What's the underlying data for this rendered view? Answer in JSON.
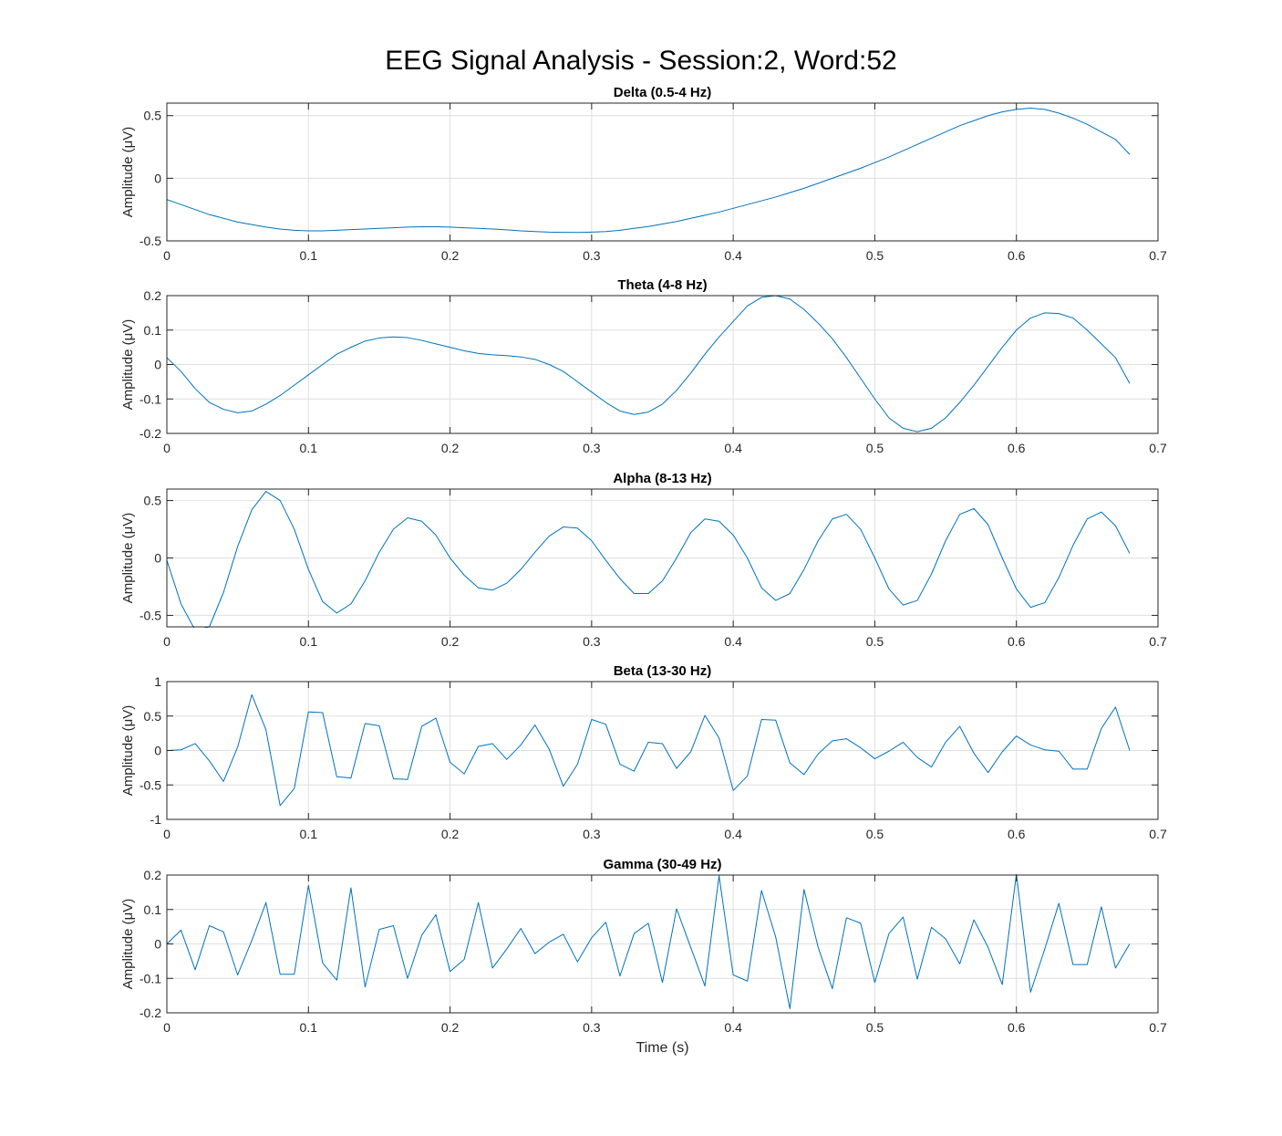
{
  "figure_title": "EEG Signal Analysis - Session:2, Word:52",
  "colors": {
    "line": "#0072BD",
    "grid": "#DFDFDF",
    "axis": "#262626"
  },
  "chart_data": [
    {
      "type": "line",
      "title": "Delta (0.5-4 Hz)",
      "xlabel": "",
      "ylabel": "Amplitude (μV)",
      "xlim": [
        0,
        0.7
      ],
      "ylim": [
        -0.5,
        0.6
      ],
      "xticks": [
        0,
        0.1,
        0.2,
        0.3,
        0.4,
        0.5,
        0.6,
        0.7
      ],
      "xtick_labels": [
        "0",
        "0.1",
        "0.2",
        "0.3",
        "0.4",
        "0.5",
        "0.6",
        "0.7"
      ],
      "yticks": [
        -0.5,
        0,
        0.5
      ],
      "ytick_labels": [
        "-0.5",
        "0",
        "0.5"
      ],
      "grid": true,
      "x": [
        0,
        0.01,
        0.02,
        0.03,
        0.04,
        0.05,
        0.06,
        0.07,
        0.08,
        0.09,
        0.1,
        0.11,
        0.12,
        0.13,
        0.14,
        0.15,
        0.16,
        0.17,
        0.18,
        0.19,
        0.2,
        0.21,
        0.22,
        0.23,
        0.24,
        0.25,
        0.26,
        0.27,
        0.28,
        0.29,
        0.3,
        0.31,
        0.32,
        0.33,
        0.34,
        0.35,
        0.36,
        0.37,
        0.38,
        0.39,
        0.4,
        0.41,
        0.42,
        0.43,
        0.44,
        0.45,
        0.46,
        0.47,
        0.48,
        0.49,
        0.5,
        0.51,
        0.52,
        0.53,
        0.54,
        0.55,
        0.56,
        0.57,
        0.58,
        0.59,
        0.6,
        0.61,
        0.62,
        0.63,
        0.64,
        0.65,
        0.66,
        0.67,
        0.68
      ],
      "series": [
        {
          "values": [
            -0.17,
            -0.21,
            -0.25,
            -0.29,
            -0.32,
            -0.35,
            -0.37,
            -0.39,
            -0.405,
            -0.415,
            -0.42,
            -0.42,
            -0.415,
            -0.41,
            -0.405,
            -0.4,
            -0.395,
            -0.39,
            -0.387,
            -0.387,
            -0.39,
            -0.395,
            -0.4,
            -0.405,
            -0.412,
            -0.42,
            -0.425,
            -0.43,
            -0.432,
            -0.433,
            -0.43,
            -0.425,
            -0.415,
            -0.4,
            -0.385,
            -0.365,
            -0.345,
            -0.32,
            -0.295,
            -0.27,
            -0.24,
            -0.21,
            -0.18,
            -0.15,
            -0.115,
            -0.08,
            -0.04,
            0,
            0.04,
            0.08,
            0.125,
            0.17,
            0.22,
            0.27,
            0.32,
            0.37,
            0.42,
            0.46,
            0.5,
            0.53,
            0.55,
            0.56,
            0.55,
            0.52,
            0.48,
            0.43,
            0.37,
            0.31,
            0.19
          ]
        }
      ]
    },
    {
      "type": "line",
      "title": "Theta (4-8 Hz)",
      "xlabel": "",
      "ylabel": "Amplitude (μV)",
      "xlim": [
        0,
        0.7
      ],
      "ylim": [
        -0.2,
        0.2
      ],
      "xticks": [
        0,
        0.1,
        0.2,
        0.3,
        0.4,
        0.5,
        0.6,
        0.7
      ],
      "xtick_labels": [
        "0",
        "0.1",
        "0.2",
        "0.3",
        "0.4",
        "0.5",
        "0.6",
        "0.7"
      ],
      "yticks": [
        -0.2,
        -0.1,
        0,
        0.1,
        0.2
      ],
      "ytick_labels": [
        "-0.2",
        "-0.1",
        "0",
        "0.1",
        "0.2"
      ],
      "grid": true,
      "x": [
        0,
        0.01,
        0.02,
        0.03,
        0.04,
        0.05,
        0.06,
        0.07,
        0.08,
        0.09,
        0.1,
        0.11,
        0.12,
        0.13,
        0.14,
        0.15,
        0.16,
        0.17,
        0.18,
        0.19,
        0.2,
        0.21,
        0.22,
        0.23,
        0.24,
        0.25,
        0.26,
        0.27,
        0.28,
        0.29,
        0.3,
        0.31,
        0.32,
        0.33,
        0.34,
        0.35,
        0.36,
        0.37,
        0.38,
        0.39,
        0.4,
        0.41,
        0.42,
        0.43,
        0.44,
        0.45,
        0.46,
        0.47,
        0.48,
        0.49,
        0.5,
        0.51,
        0.52,
        0.53,
        0.54,
        0.55,
        0.56,
        0.57,
        0.58,
        0.59,
        0.6,
        0.61,
        0.62,
        0.63,
        0.64,
        0.65,
        0.66,
        0.67,
        0.68
      ],
      "series": [
        {
          "values": [
            0.02,
            -0.02,
            -0.07,
            -0.11,
            -0.13,
            -0.14,
            -0.135,
            -0.115,
            -0.09,
            -0.06,
            -0.03,
            0,
            0.03,
            0.05,
            0.068,
            0.077,
            0.08,
            0.078,
            0.07,
            0.06,
            0.05,
            0.04,
            0.032,
            0.028,
            0.026,
            0.022,
            0.015,
            0,
            -0.02,
            -0.05,
            -0.08,
            -0.11,
            -0.135,
            -0.145,
            -0.138,
            -0.115,
            -0.075,
            -0.025,
            0.03,
            0.08,
            0.125,
            0.17,
            0.195,
            0.2,
            0.19,
            0.16,
            0.12,
            0.075,
            0.02,
            -0.04,
            -0.1,
            -0.155,
            -0.185,
            -0.195,
            -0.185,
            -0.155,
            -0.11,
            -0.06,
            -0.005,
            0.05,
            0.1,
            0.135,
            0.15,
            0.148,
            0.135,
            0.1,
            0.06,
            0.02,
            -0.055
          ]
        }
      ]
    },
    {
      "type": "line",
      "title": "Alpha (8-13 Hz)",
      "xlabel": "",
      "ylabel": "Amplitude (μV)",
      "xlim": [
        0,
        0.7
      ],
      "ylim": [
        -0.6,
        0.6
      ],
      "xticks": [
        0,
        0.1,
        0.2,
        0.3,
        0.4,
        0.5,
        0.6,
        0.7
      ],
      "xtick_labels": [
        "0",
        "0.1",
        "0.2",
        "0.3",
        "0.4",
        "0.5",
        "0.6",
        "0.7"
      ],
      "yticks": [
        -0.5,
        0,
        0.5
      ],
      "ytick_labels": [
        "-0.5",
        "0",
        "0.5"
      ],
      "grid": true,
      "x": [
        0,
        0.01,
        0.02,
        0.03,
        0.04,
        0.05,
        0.06,
        0.07,
        0.08,
        0.09,
        0.1,
        0.11,
        0.12,
        0.13,
        0.14,
        0.15,
        0.16,
        0.17,
        0.18,
        0.19,
        0.2,
        0.21,
        0.22,
        0.23,
        0.24,
        0.25,
        0.26,
        0.27,
        0.28,
        0.29,
        0.3,
        0.31,
        0.32,
        0.33,
        0.34,
        0.35,
        0.36,
        0.37,
        0.38,
        0.39,
        0.4,
        0.41,
        0.42,
        0.43,
        0.44,
        0.45,
        0.46,
        0.47,
        0.48,
        0.49,
        0.5,
        0.51,
        0.52,
        0.53,
        0.54,
        0.55,
        0.56,
        0.57,
        0.58,
        0.59,
        0.6,
        0.61,
        0.62,
        0.63,
        0.64,
        0.65,
        0.66,
        0.67,
        0.68
      ],
      "series": [
        {
          "values": [
            -0.02,
            -0.4,
            -0.63,
            -0.6,
            -0.3,
            0.1,
            0.42,
            0.58,
            0.5,
            0.25,
            -0.1,
            -0.38,
            -0.48,
            -0.4,
            -0.2,
            0.05,
            0.25,
            0.35,
            0.32,
            0.2,
            0,
            -0.15,
            -0.26,
            -0.28,
            -0.22,
            -0.1,
            0.05,
            0.19,
            0.27,
            0.26,
            0.15,
            -0.02,
            -0.18,
            -0.31,
            -0.31,
            -0.2,
            0,
            0.22,
            0.34,
            0.32,
            0.2,
            0,
            -0.26,
            -0.37,
            -0.31,
            -0.1,
            0.15,
            0.34,
            0.38,
            0.25,
            0,
            -0.27,
            -0.41,
            -0.37,
            -0.14,
            0.15,
            0.38,
            0.43,
            0.29,
            0,
            -0.27,
            -0.43,
            -0.39,
            -0.17,
            0.11,
            0.34,
            0.4,
            0.28,
            0.04
          ]
        }
      ]
    },
    {
      "type": "line",
      "title": "Beta (13-30 Hz)",
      "xlabel": "",
      "ylabel": "Amplitude (μV)",
      "xlim": [
        0,
        0.7
      ],
      "ylim": [
        -1,
        1
      ],
      "xticks": [
        0,
        0.1,
        0.2,
        0.3,
        0.4,
        0.5,
        0.6,
        0.7
      ],
      "xtick_labels": [
        "0",
        "0.1",
        "0.2",
        "0.3",
        "0.4",
        "0.5",
        "0.6",
        "0.7"
      ],
      "yticks": [
        -1,
        -0.5,
        0,
        0.5,
        1
      ],
      "ytick_labels": [
        "-1",
        "-0.5",
        "0",
        "0.5",
        "1"
      ],
      "grid": true,
      "x": [
        0,
        0.01,
        0.02,
        0.03,
        0.04,
        0.05,
        0.06,
        0.07,
        0.08,
        0.09,
        0.1,
        0.11,
        0.12,
        0.13,
        0.14,
        0.15,
        0.16,
        0.17,
        0.18,
        0.19,
        0.2,
        0.21,
        0.22,
        0.23,
        0.24,
        0.25,
        0.26,
        0.27,
        0.28,
        0.29,
        0.3,
        0.31,
        0.32,
        0.33,
        0.34,
        0.35,
        0.36,
        0.37,
        0.38,
        0.39,
        0.4,
        0.41,
        0.42,
        0.43,
        0.44,
        0.45,
        0.46,
        0.47,
        0.48,
        0.49,
        0.5,
        0.51,
        0.52,
        0.53,
        0.54,
        0.55,
        0.56,
        0.57,
        0.58,
        0.59,
        0.6,
        0.61,
        0.62,
        0.63,
        0.64,
        0.65,
        0.66,
        0.67,
        0.68
      ],
      "series": [
        {
          "values": [
            0,
            0.01,
            0.1,
            -0.15,
            -0.45,
            0.05,
            0.81,
            0.3,
            -0.8,
            -0.55,
            0.56,
            0.55,
            -0.38,
            -0.4,
            0.39,
            0.36,
            -0.41,
            -0.42,
            0.35,
            0.47,
            -0.17,
            -0.34,
            0.06,
            0.1,
            -0.13,
            0.08,
            0.37,
            0.02,
            -0.52,
            -0.2,
            0.45,
            0.38,
            -0.2,
            -0.3,
            0.12,
            0.1,
            -0.26,
            -0.02,
            0.51,
            0.18,
            -0.58,
            -0.37,
            0.45,
            0.44,
            -0.18,
            -0.35,
            -0.05,
            0.14,
            0.17,
            0.04,
            -0.12,
            -0.01,
            0.12,
            -0.1,
            -0.24,
            0.12,
            0.35,
            -0.04,
            -0.32,
            -0.02,
            0.21,
            0.08,
            0.01,
            -0.01,
            -0.27,
            -0.27,
            0.32,
            0.63,
            0
          ]
        }
      ]
    },
    {
      "type": "line",
      "title": "Gamma (30-49 Hz)",
      "xlabel": "Time (s)",
      "ylabel": "Amplitude (μV)",
      "xlim": [
        0,
        0.7
      ],
      "ylim": [
        -0.2,
        0.2
      ],
      "xticks": [
        0,
        0.1,
        0.2,
        0.3,
        0.4,
        0.5,
        0.6,
        0.7
      ],
      "xtick_labels": [
        "0",
        "0.1",
        "0.2",
        "0.3",
        "0.4",
        "0.5",
        "0.6",
        "0.7"
      ],
      "yticks": [
        -0.2,
        -0.1,
        0,
        0.1,
        0.2
      ],
      "ytick_labels": [
        "-0.2",
        "-0.1",
        "0",
        "0.1",
        "0.2"
      ],
      "grid": true,
      "x": [
        0,
        0.01,
        0.02,
        0.03,
        0.04,
        0.05,
        0.06,
        0.07,
        0.08,
        0.09,
        0.1,
        0.11,
        0.12,
        0.13,
        0.14,
        0.15,
        0.16,
        0.17,
        0.18,
        0.19,
        0.2,
        0.21,
        0.22,
        0.23,
        0.24,
        0.25,
        0.26,
        0.27,
        0.28,
        0.29,
        0.3,
        0.31,
        0.32,
        0.33,
        0.34,
        0.35,
        0.36,
        0.37,
        0.38,
        0.39,
        0.4,
        0.41,
        0.42,
        0.43,
        0.44,
        0.45,
        0.46,
        0.47,
        0.48,
        0.49,
        0.5,
        0.51,
        0.52,
        0.53,
        0.54,
        0.55,
        0.56,
        0.57,
        0.58,
        0.59,
        0.6,
        0.61,
        0.62,
        0.63,
        0.64,
        0.65,
        0.66,
        0.67,
        0.68
      ],
      "series": [
        {
          "values": [
            0,
            0.04,
            -0.075,
            0.053,
            0.035,
            -0.09,
            0.01,
            0.12,
            -0.088,
            -0.088,
            0.17,
            -0.055,
            -0.105,
            0.163,
            -0.125,
            0.042,
            0.053,
            -0.1,
            0.025,
            0.085,
            -0.08,
            -0.045,
            0.12,
            -0.07,
            -0.015,
            0.045,
            -0.028,
            0.005,
            0.028,
            -0.052,
            0.018,
            0.063,
            -0.093,
            0.03,
            0.06,
            -0.112,
            0.102,
            -0.01,
            -0.122,
            0.198,
            -0.09,
            -0.108,
            0.155,
            0.02,
            -0.188,
            0.158,
            -0.01,
            -0.13,
            0.076,
            0.06,
            -0.112,
            0.03,
            0.078,
            -0.102,
            0.048,
            0.015,
            -0.058,
            0.07,
            -0.01,
            -0.118,
            0.203,
            -0.14,
            -0.015,
            0.118,
            -0.06,
            -0.06,
            0.108,
            -0.07,
            0
          ]
        }
      ]
    }
  ]
}
